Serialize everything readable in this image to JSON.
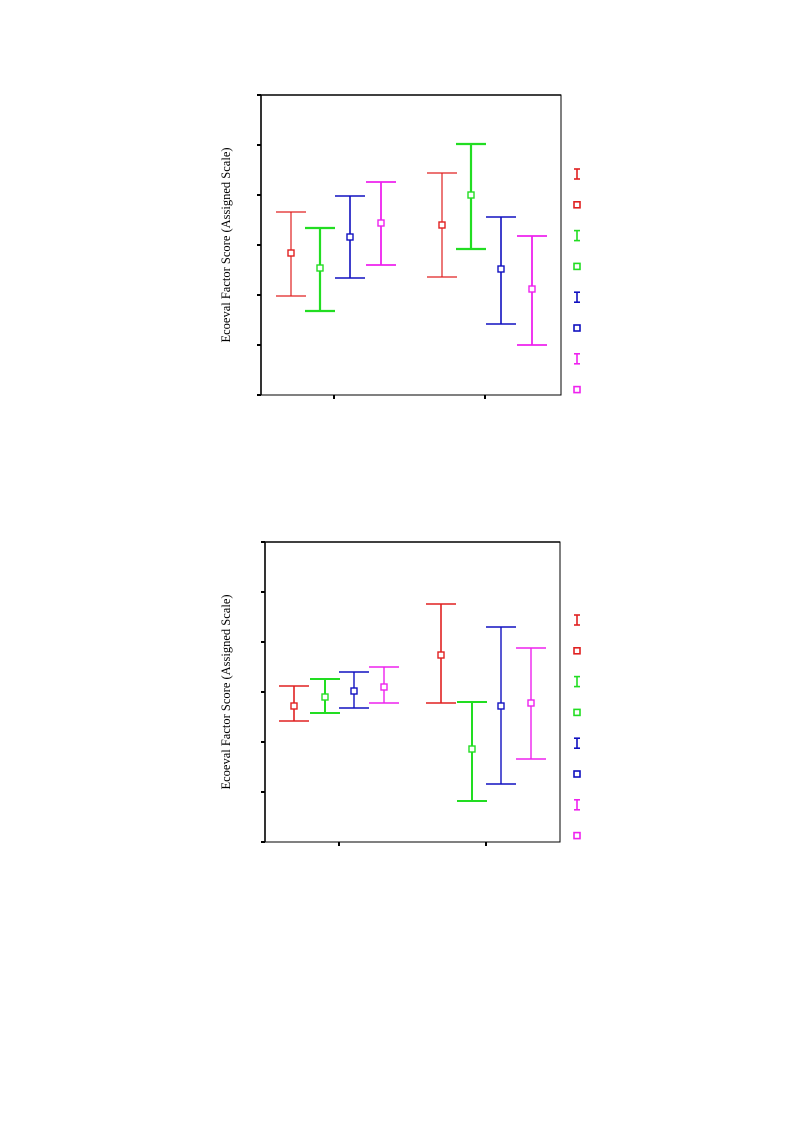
{
  "colors": {
    "red": "#e02020",
    "green": "#22dd22",
    "blue": "#1010c0",
    "magenta": "#ee22ee",
    "axis": "#000000"
  },
  "chart_data": [
    {
      "type": "errorbar",
      "ylabel": "Ecoeval Factor Score (Assigned Scale)",
      "xlabel": "",
      "title": "",
      "grid": false,
      "legend_position": "right",
      "ylim": [
        0,
        6
      ],
      "ytick_count": 7,
      "categories": [
        "",
        ""
      ],
      "series": [
        {
          "color": "red",
          "points": [
            {
              "mean": 2.84,
              "low": 1.98,
              "high": 3.66
            },
            {
              "mean": 3.4,
              "low": 2.36,
              "high": 4.44
            }
          ]
        },
        {
          "color": "green",
          "points": [
            {
              "mean": 2.54,
              "low": 1.68,
              "high": 3.34
            },
            {
              "mean": 4.0,
              "low": 2.92,
              "high": 5.02
            }
          ]
        },
        {
          "color": "blue",
          "points": [
            {
              "mean": 3.16,
              "low": 2.34,
              "high": 3.98
            },
            {
              "mean": 2.52,
              "low": 1.42,
              "high": 3.56
            }
          ]
        },
        {
          "color": "magenta",
          "points": [
            {
              "mean": 3.44,
              "low": 2.6,
              "high": 4.26
            },
            {
              "mean": 2.12,
              "low": 1.0,
              "high": 3.18
            }
          ]
        }
      ]
    },
    {
      "type": "errorbar",
      "ylabel": "Ecoeval Factor Score (Assigned Scale)",
      "xlabel": "",
      "title": "",
      "grid": false,
      "legend_position": "right",
      "ylim": [
        0,
        6
      ],
      "ytick_count": 7,
      "categories": [
        "",
        ""
      ],
      "series": [
        {
          "color": "red",
          "points": [
            {
              "mean": 2.72,
              "low": 2.42,
              "high": 3.12
            },
            {
              "mean": 3.74,
              "low": 2.78,
              "high": 4.76
            }
          ]
        },
        {
          "color": "green",
          "points": [
            {
              "mean": 2.9,
              "low": 2.58,
              "high": 3.26
            },
            {
              "mean": 1.86,
              "low": 0.82,
              "high": 2.8
            }
          ]
        },
        {
          "color": "blue",
          "points": [
            {
              "mean": 3.02,
              "low": 2.68,
              "high": 3.4
            },
            {
              "mean": 2.72,
              "low": 1.16,
              "high": 4.3
            }
          ]
        },
        {
          "color": "magenta",
          "points": [
            {
              "mean": 3.1,
              "low": 2.78,
              "high": 3.5
            },
            {
              "mean": 2.78,
              "low": 1.66,
              "high": 3.88
            }
          ]
        }
      ]
    }
  ]
}
